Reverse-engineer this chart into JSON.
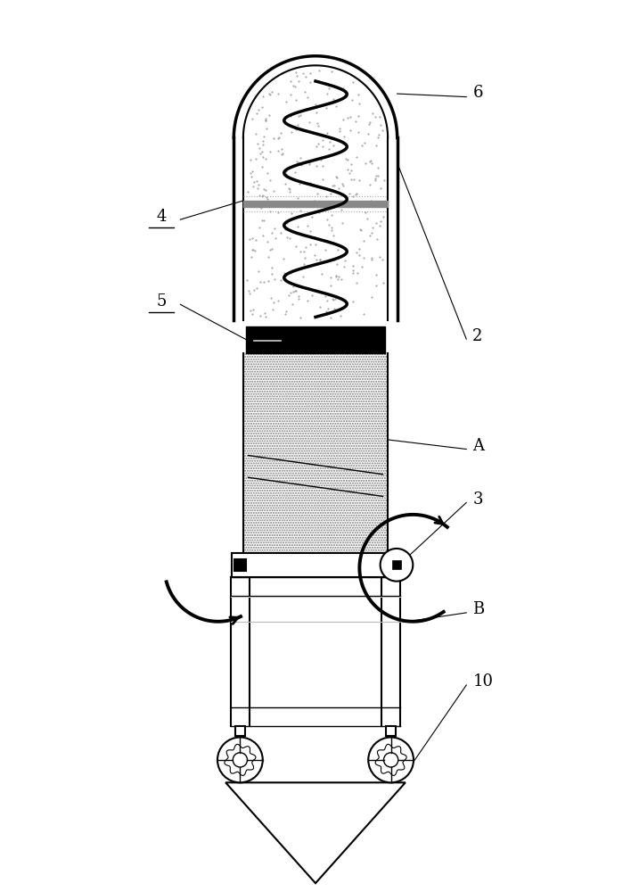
{
  "bg_color": "#ffffff",
  "line_color": "#000000",
  "gray_light": "#cccccc",
  "gray_mid": "#999999",
  "fig_width": 7.08,
  "fig_height": 10.0
}
